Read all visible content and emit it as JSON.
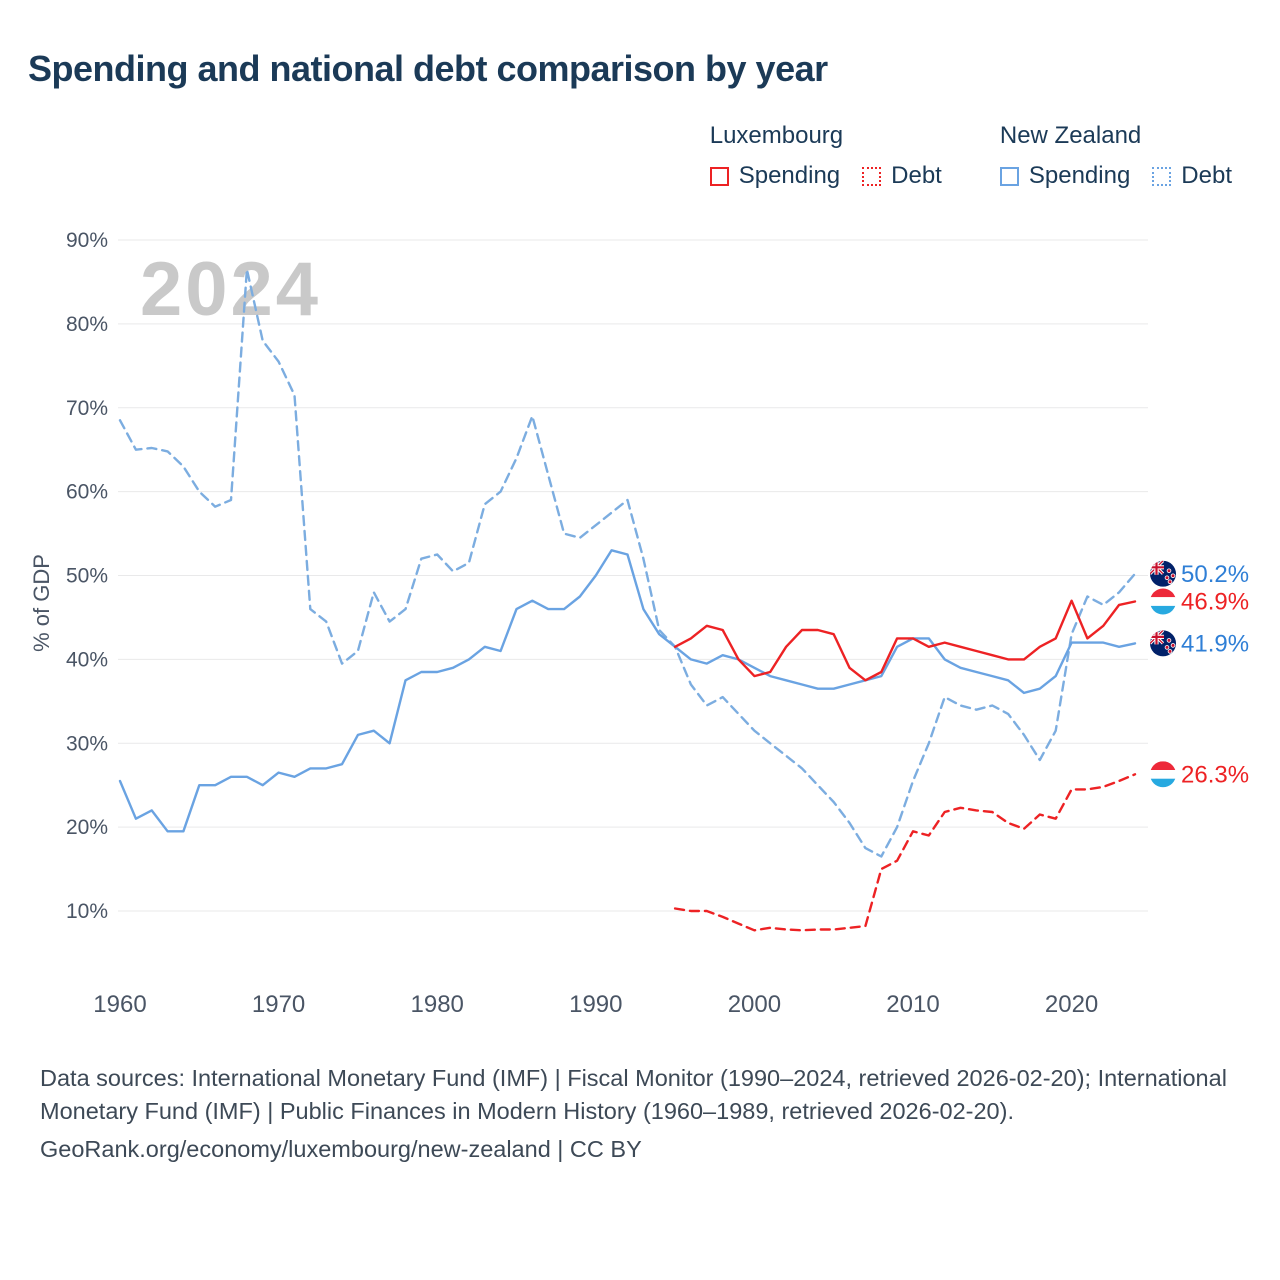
{
  "title": "Spending and national debt comparison by year",
  "watermark": "2024",
  "legend": {
    "groups": [
      {
        "country": "Luxembourg",
        "color": "#ed2224",
        "items": [
          {
            "label": "Spending",
            "style": "solid"
          },
          {
            "label": "Debt",
            "style": "dotted"
          }
        ]
      },
      {
        "country": "New Zealand",
        "color": "#6aa3e2",
        "items": [
          {
            "label": "Spending",
            "style": "solid"
          },
          {
            "label": "Debt",
            "style": "dotted"
          }
        ]
      }
    ]
  },
  "chart_data": {
    "type": "line",
    "title": "Spending and national debt comparison by year",
    "ylabel": "% of GDP",
    "ylim": [
      5,
      92
    ],
    "yticks": [
      10,
      20,
      30,
      40,
      50,
      60,
      70,
      80,
      90
    ],
    "xticks": [
      1960,
      1970,
      1980,
      1990,
      2000,
      2010,
      2020
    ],
    "grid": "horizontal",
    "legend_position": "top-right",
    "colors": {
      "luxembourg": "#ed2224",
      "new_zealand": "#6aa3e2",
      "nz_label_text": "#2f7fd6"
    },
    "series": [
      {
        "id": "nz-debt",
        "name": "New Zealand Debt",
        "color": "#7cade0",
        "style": "dashed",
        "x": [
          1960,
          1961,
          1962,
          1963,
          1964,
          1965,
          1966,
          1967,
          1968,
          1969,
          1970,
          1971,
          1972,
          1973,
          1974,
          1975,
          1976,
          1977,
          1978,
          1979,
          1980,
          1981,
          1982,
          1983,
          1984,
          1985,
          1986,
          1987,
          1988,
          1989,
          1990,
          1991,
          1992,
          1993,
          1994,
          1995,
          1996,
          1997,
          1998,
          1999,
          2000,
          2001,
          2002,
          2003,
          2004,
          2005,
          2006,
          2007,
          2008,
          2009,
          2010,
          2011,
          2012,
          2013,
          2014,
          2015,
          2016,
          2017,
          2018,
          2019,
          2020,
          2021,
          2022,
          2023,
          2024
        ],
        "y": [
          68.5,
          65,
          65.2,
          64.8,
          63,
          60,
          58.2,
          59,
          86.5,
          78,
          75.5,
          71.5,
          46,
          44.5,
          39.5,
          41,
          48,
          44.5,
          46,
          52,
          52.5,
          50.5,
          51.5,
          58.5,
          60,
          64,
          69,
          62,
          55,
          54.5,
          56,
          57.5,
          59,
          52,
          43.5,
          41.5,
          37,
          34.5,
          35.5,
          33.5,
          31.5,
          30,
          28.5,
          27,
          25,
          23,
          20.5,
          17.5,
          16.5,
          20,
          25.5,
          30,
          35.5,
          34.5,
          34,
          34.5,
          33.5,
          31,
          28,
          31.5,
          43,
          47.5,
          46.5,
          48,
          50.2
        ]
      },
      {
        "id": "nz-spending",
        "name": "New Zealand Spending",
        "color": "#6aa3e2",
        "style": "solid",
        "x": [
          1960,
          1961,
          1962,
          1963,
          1964,
          1965,
          1966,
          1967,
          1968,
          1969,
          1970,
          1971,
          1972,
          1973,
          1974,
          1975,
          1976,
          1977,
          1978,
          1979,
          1980,
          1981,
          1982,
          1983,
          1984,
          1985,
          1986,
          1987,
          1988,
          1989,
          1990,
          1991,
          1992,
          1993,
          1994,
          1995,
          1996,
          1997,
          1998,
          1999,
          2000,
          2001,
          2002,
          2003,
          2004,
          2005,
          2006,
          2007,
          2008,
          2009,
          2010,
          2011,
          2012,
          2013,
          2014,
          2015,
          2016,
          2017,
          2018,
          2019,
          2020,
          2021,
          2022,
          2023,
          2024
        ],
        "y": [
          25.5,
          21,
          22,
          19.5,
          19.5,
          25,
          25,
          26,
          26,
          25,
          26.5,
          26,
          27,
          27,
          27.5,
          31,
          31.5,
          30,
          37.5,
          38.5,
          38.5,
          39,
          40,
          41.5,
          41,
          46,
          47,
          46,
          46,
          47.5,
          50,
          53,
          52.5,
          46,
          43,
          41.5,
          40,
          39.5,
          40.5,
          40,
          39,
          38,
          37.5,
          37,
          36.5,
          36.5,
          37,
          37.5,
          38,
          41.5,
          42.5,
          42.5,
          40,
          39,
          38.5,
          38,
          37.5,
          36,
          36.5,
          38,
          42,
          42,
          42,
          41.5,
          41.9
        ]
      },
      {
        "id": "lu-debt",
        "name": "Luxembourg Debt",
        "color": "#ed2224",
        "style": "dashed",
        "x": [
          1995,
          1996,
          1997,
          1998,
          1999,
          2000,
          2001,
          2002,
          2003,
          2004,
          2005,
          2006,
          2007,
          2008,
          2009,
          2010,
          2011,
          2012,
          2013,
          2014,
          2015,
          2016,
          2017,
          2018,
          2019,
          2020,
          2021,
          2022,
          2023,
          2024
        ],
        "y": [
          10.3,
          10,
          10,
          9.3,
          8.5,
          7.7,
          8,
          7.8,
          7.7,
          7.8,
          7.8,
          8,
          8.2,
          15,
          16,
          19.5,
          19,
          21.8,
          22.3,
          22,
          21.8,
          20.5,
          19.8,
          21.5,
          21,
          24.5,
          24.5,
          24.8,
          25.5,
          26.3
        ]
      },
      {
        "id": "lu-spending",
        "name": "Luxembourg Spending",
        "color": "#ed2224",
        "style": "solid",
        "x": [
          1995,
          1996,
          1997,
          1998,
          1999,
          2000,
          2001,
          2002,
          2003,
          2004,
          2005,
          2006,
          2007,
          2008,
          2009,
          2010,
          2011,
          2012,
          2013,
          2014,
          2015,
          2016,
          2017,
          2018,
          2019,
          2020,
          2021,
          2022,
          2023,
          2024
        ],
        "y": [
          41.5,
          42.5,
          44,
          43.5,
          40,
          38,
          38.5,
          41.5,
          43.5,
          43.5,
          43,
          39,
          37.5,
          38.5,
          42.5,
          42.5,
          41.5,
          42,
          41.5,
          41,
          40.5,
          40,
          40,
          41.5,
          42.5,
          47,
          42.5,
          44,
          46.5,
          46.9
        ]
      }
    ]
  },
  "end_labels": [
    {
      "id": "nz-debt",
      "text": "50.2%",
      "value": 50.2,
      "color": "#2f7fd6",
      "flag": "nz"
    },
    {
      "id": "lu-spending",
      "text": "46.9%",
      "value": 46.9,
      "color": "#ed2224",
      "flag": "lu"
    },
    {
      "id": "nz-spending",
      "text": "41.9%",
      "value": 41.9,
      "color": "#2f7fd6",
      "flag": "nz"
    },
    {
      "id": "lu-debt",
      "text": "26.3%",
      "value": 26.3,
      "color": "#ed2224",
      "flag": "lu"
    }
  ],
  "footer": {
    "sources": "Data sources: International Monetary Fund (IMF) | Fiscal Monitor (1990–2024, retrieved 2026-02-20); International Monetary Fund (IMF) | Public Finances in Modern History (1960–1989, retrieved 2026-02-20).",
    "attribution": "GeoRank.org/economy/luxembourg/new-zealand | CC BY"
  }
}
